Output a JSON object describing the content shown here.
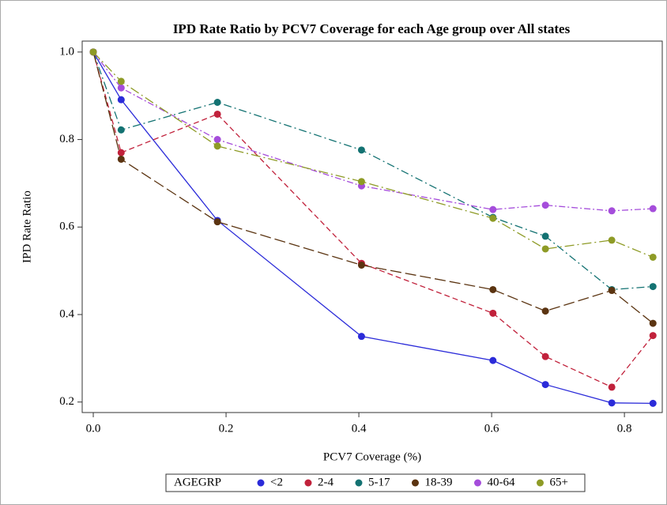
{
  "chart_data": {
    "type": "line",
    "title": "IPD Rate Ratio by PCV7 Coverage for each Age group over All states",
    "x_label": "PCV7 Coverage (%)",
    "y_label": "IPD Rate Ratio",
    "legend_title": "AGEGRP",
    "legend": "bottom",
    "x": [
      0,
      0.042,
      0.187,
      0.404,
      0.602,
      0.681,
      0.781,
      0.843
    ],
    "xlim": [
      -0.0167,
      0.857
    ],
    "xticks": [
      {
        "value": 0,
        "label": "0.0"
      },
      0.2,
      0.4,
      0.6,
      0.8
    ],
    "ylim": [
      0.176,
      1.025
    ],
    "yticks": [
      0.2,
      0.4,
      0.6,
      0.8,
      {
        "value": 1,
        "label": "1.0"
      }
    ],
    "series": [
      {
        "name": "<2",
        "color": "#2b2bd9",
        "dash": "none",
        "values": [
          1.0,
          0.891,
          0.615,
          0.35,
          0.295,
          0.24,
          0.198,
          0.197
        ]
      },
      {
        "name": "2-4",
        "color": "#c1213b",
        "dash": "7,4",
        "values": [
          1.0,
          0.77,
          0.858,
          0.517,
          0.403,
          0.304,
          0.234,
          0.352
        ]
      },
      {
        "name": "5-17",
        "color": "#137272",
        "dash": "10,4,2,4",
        "values": [
          1.0,
          0.822,
          0.885,
          0.776,
          0.622,
          0.579,
          0.457,
          0.464
        ]
      },
      {
        "name": "18-39",
        "color": "#5b3411",
        "dash": "14,5",
        "values": [
          1.0,
          0.755,
          0.612,
          0.513,
          0.457,
          0.408,
          0.455,
          0.38
        ]
      },
      {
        "name": "40-64",
        "color": "#a54ddb",
        "dash": "8,3,2,3",
        "values": [
          1.0,
          0.918,
          0.8,
          0.694,
          0.64,
          0.65,
          0.637,
          0.642
        ]
      },
      {
        "name": "65+",
        "color": "#8e9b26",
        "dash": "12,4,2,4",
        "values": [
          1.0,
          0.933,
          0.785,
          0.704,
          0.62,
          0.55,
          0.57,
          0.531
        ]
      }
    ]
  }
}
